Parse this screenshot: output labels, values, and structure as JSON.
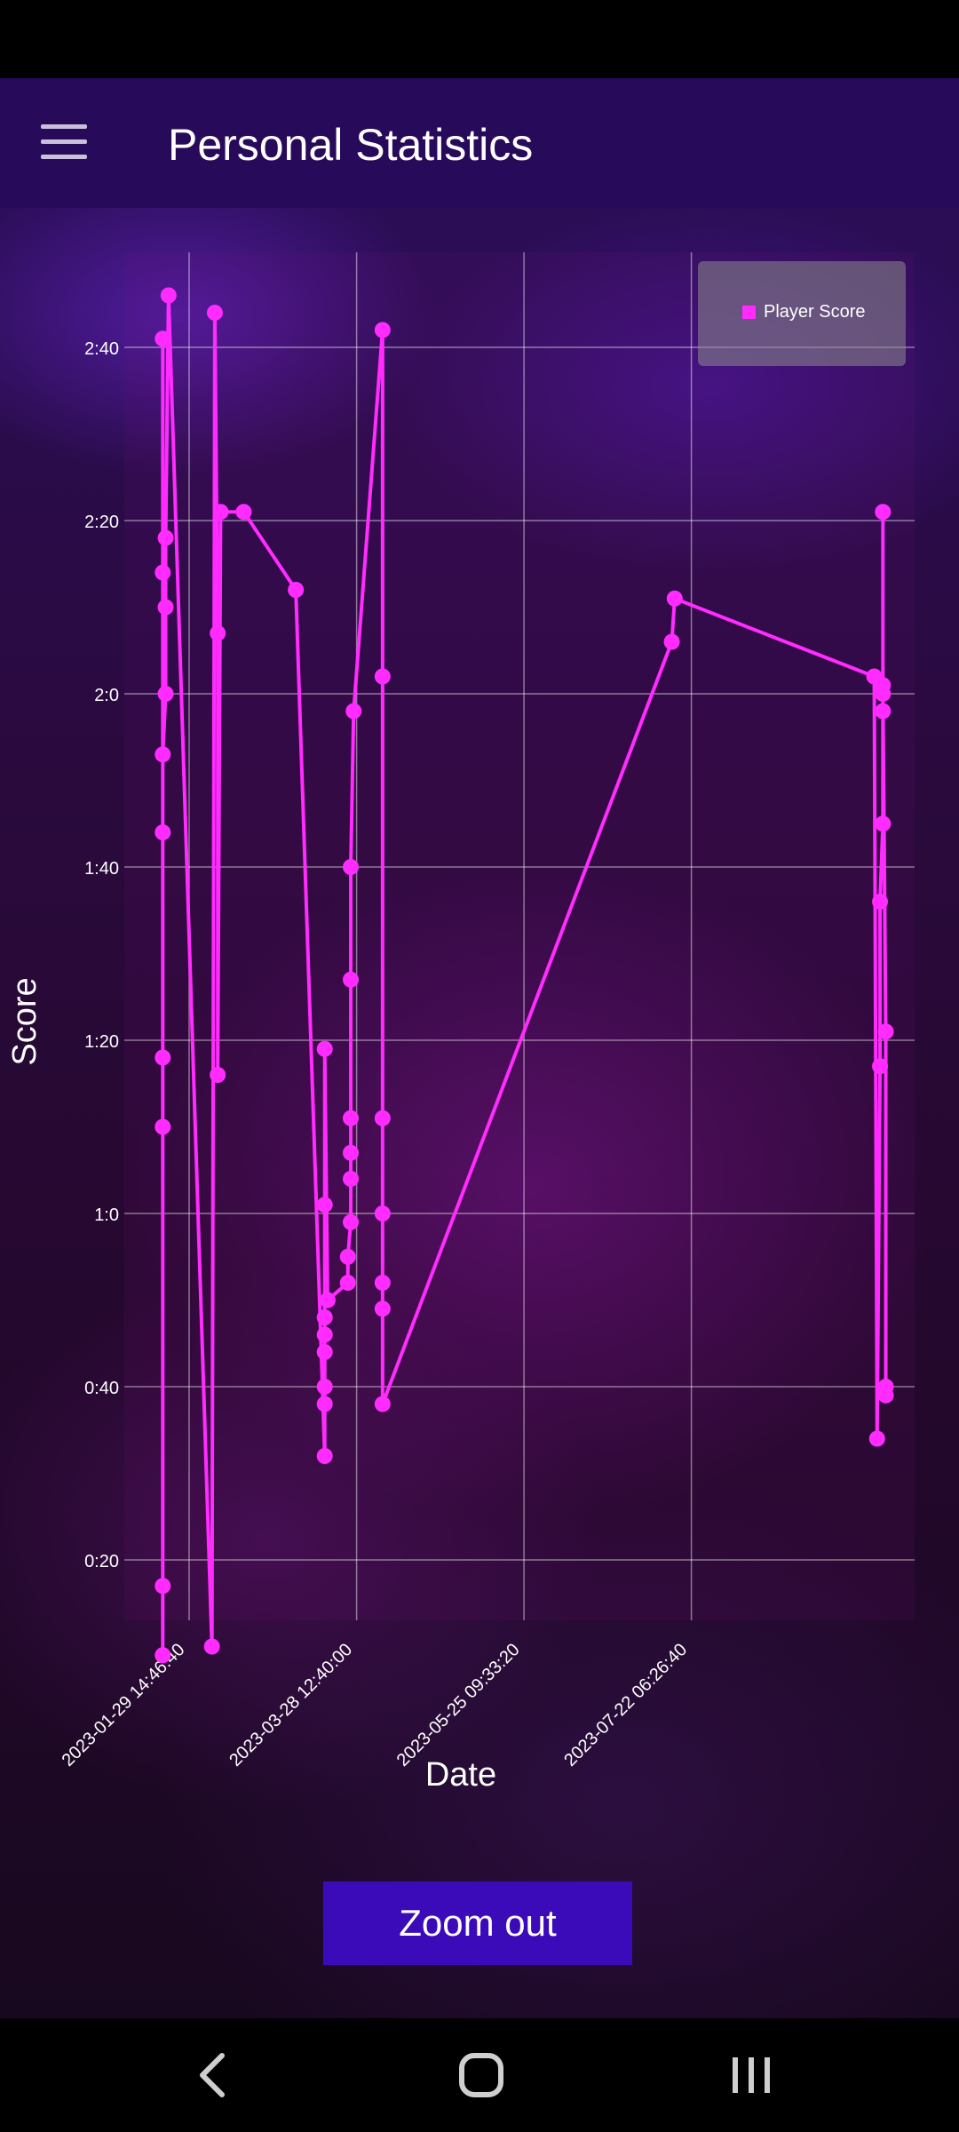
{
  "app_bar": {
    "title": "Personal Statistics",
    "menu_icon": "hamburger-menu-icon"
  },
  "zoom_button": {
    "label": "Zoom out"
  },
  "nav_bar": {
    "back_icon": "back-chevron-icon",
    "home_icon": "home-icon",
    "recents_icon": "recents-icon"
  },
  "colors": {
    "series": "#ff2bff",
    "app_bar": "#280a5a",
    "button": "#3c0bb9"
  },
  "chart_data": {
    "type": "line",
    "xlabel": "Date",
    "ylabel": "Score",
    "legend": {
      "entry": "Player Score",
      "placement": "top-right"
    },
    "grid": true,
    "x_ticks": [
      "2023-01-29 14:46:40",
      "2023-03-28 12:40:00",
      "2023-05-25 09:33:20",
      "2023-07-22 06:26:40"
    ],
    "y_ticks": [
      "0:20",
      "0:40",
      "1:0",
      "1:20",
      "1:40",
      "2:0",
      "2:20",
      "2:40"
    ],
    "ylim_seconds": [
      9,
      170
    ],
    "series": [
      {
        "name": "Player Score",
        "points": [
          [
            "2023-01-20",
            9
          ],
          [
            "2023-01-20",
            17
          ],
          [
            "2023-01-20",
            78
          ],
          [
            "2023-01-20",
            134
          ],
          [
            "2023-01-20",
            161
          ],
          [
            "2023-01-20",
            70
          ],
          [
            "2023-01-20",
            104
          ],
          [
            "2023-01-20",
            113
          ],
          [
            "2023-01-21",
            120
          ],
          [
            "2023-01-21",
            130
          ],
          [
            "2023-01-21",
            138
          ],
          [
            "2023-01-22",
            166
          ],
          [
            "2023-02-06",
            10
          ],
          [
            "2023-02-07",
            164
          ],
          [
            "2023-02-08",
            127
          ],
          [
            "2023-02-08",
            76
          ],
          [
            "2023-02-09",
            141
          ],
          [
            "2023-02-17",
            141
          ],
          [
            "2023-03-07",
            132
          ],
          [
            "2023-03-17",
            32
          ],
          [
            "2023-03-17",
            38
          ],
          [
            "2023-03-17",
            40
          ],
          [
            "2023-03-17",
            44
          ],
          [
            "2023-03-17",
            46
          ],
          [
            "2023-03-17",
            48
          ],
          [
            "2023-03-17",
            61
          ],
          [
            "2023-03-17",
            79
          ],
          [
            "2023-03-18",
            50
          ],
          [
            "2023-03-25",
            52
          ],
          [
            "2023-03-25",
            55
          ],
          [
            "2023-03-26",
            59
          ],
          [
            "2023-03-26",
            64
          ],
          [
            "2023-03-26",
            67
          ],
          [
            "2023-03-26",
            71
          ],
          [
            "2023-03-26",
            87
          ],
          [
            "2023-03-26",
            100
          ],
          [
            "2023-03-27",
            118
          ],
          [
            "2023-04-06",
            162
          ],
          [
            "2023-04-06",
            122
          ],
          [
            "2023-04-06",
            71
          ],
          [
            "2023-04-06",
            60
          ],
          [
            "2023-04-06",
            52
          ],
          [
            "2023-04-06",
            49
          ],
          [
            "2023-04-06",
            38
          ],
          [
            "2023-07-15",
            126
          ],
          [
            "2023-07-16",
            131
          ],
          [
            "2023-09-23",
            122
          ],
          [
            "2023-09-24",
            34
          ],
          [
            "2023-09-25",
            77
          ],
          [
            "2023-09-25",
            96
          ],
          [
            "2023-09-26",
            105
          ],
          [
            "2023-09-26",
            118
          ],
          [
            "2023-09-26",
            121
          ],
          [
            "2023-09-26",
            141
          ],
          [
            "2023-09-26",
            120
          ],
          [
            "2023-09-27",
            81
          ],
          [
            "2023-09-27",
            40
          ],
          [
            "2023-09-27",
            39
          ]
        ]
      }
    ]
  }
}
